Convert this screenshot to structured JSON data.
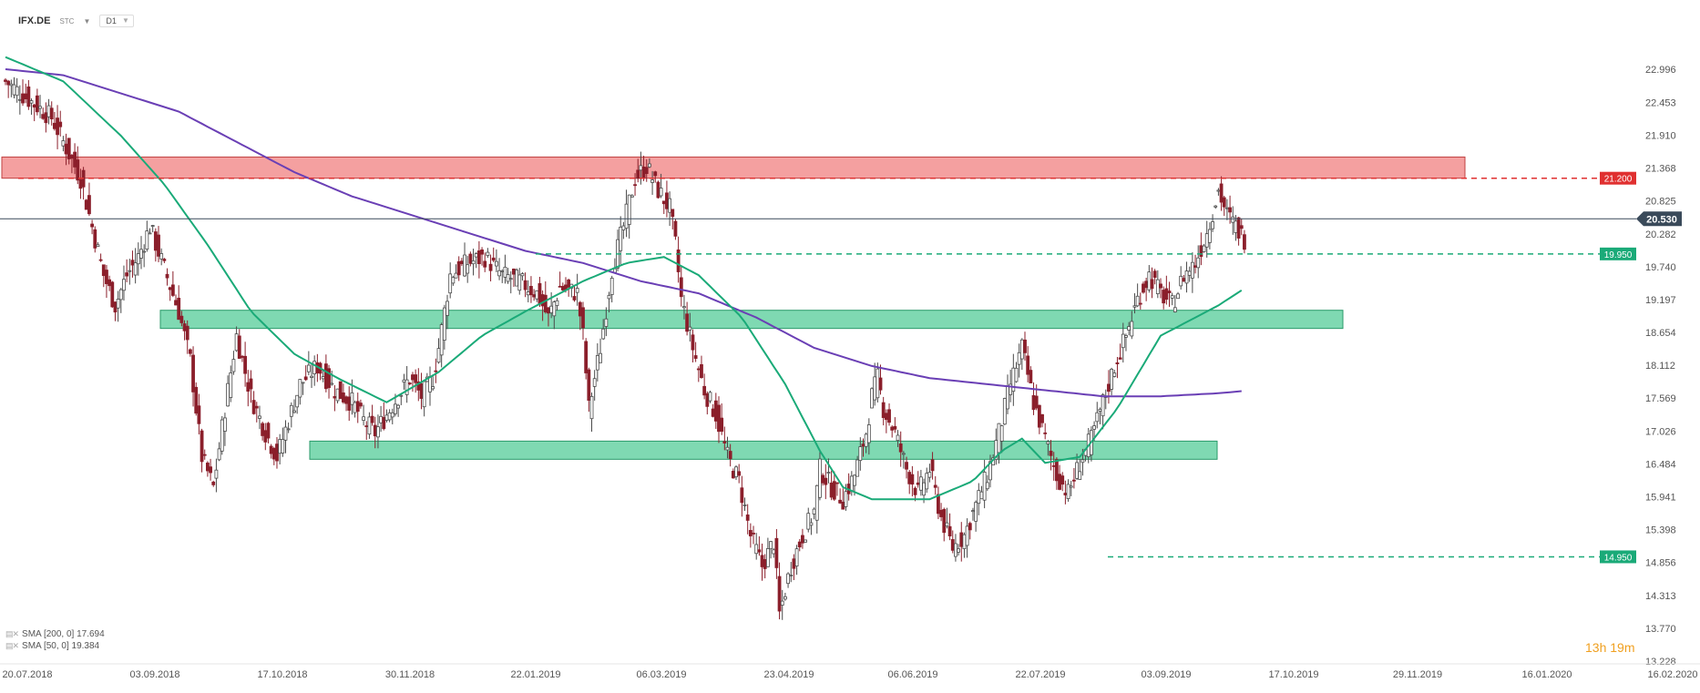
{
  "header": {
    "symbol": "IFX.DE",
    "stc": "STC",
    "timeframe": "D1"
  },
  "countdown": {
    "hours": "13",
    "h": "h",
    "minutes": "19",
    "m": "m"
  },
  "legend": [
    {
      "text": "SMA [200, 0] 17.694",
      "color": "#6a3fb5"
    },
    {
      "text": "SMA [50, 0] 19.384",
      "color": "#1aaa78"
    }
  ],
  "colors": {
    "bull": "#4a4a4a",
    "bear": "#8b1f2b",
    "resistance_zone": "#f08080",
    "support_zone": "#5fcf9f",
    "sma200": "#6a3fb5",
    "sma50": "#1aaa78",
    "red_label": "#e03030",
    "green_label": "#1aaa78",
    "price_label": "#3a4a5a"
  },
  "chart_data": {
    "type": "candlestick",
    "ylim": [
      13.228,
      23.3
    ],
    "y_ticks": [
      "22.996",
      "22.453",
      "21.910",
      "21.368",
      "20.825",
      "20.282",
      "19.740",
      "19.197",
      "18.654",
      "18.112",
      "17.569",
      "17.026",
      "16.484",
      "15.941",
      "15.398",
      "14.856",
      "14.313",
      "13.770",
      "13.228"
    ],
    "x_ticks": [
      "20.07.2018",
      "03.09.2018",
      "17.10.2018",
      "30.11.2018",
      "22.01.2019",
      "06.03.2019",
      "23.04.2019",
      "06.06.2019",
      "22.07.2019",
      "03.09.2019",
      "17.10.2019",
      "29.11.2019",
      "16.01.2020",
      "16.02.2020"
    ],
    "current_price": "20.530",
    "levels": [
      {
        "value": 21.2,
        "label": "21.200",
        "color": "red"
      },
      {
        "value": 19.95,
        "label": "19.950",
        "color": "green"
      },
      {
        "value": 14.95,
        "label": "14.950",
        "color": "green"
      }
    ],
    "zones": [
      {
        "name": "resistance",
        "from_date": "20.07.2018",
        "to_date": "20.12.2019",
        "low": 21.2,
        "high": 21.55
      },
      {
        "name": "support-upper",
        "from_date": "27.08.2018",
        "to_date": "10.11.2019",
        "low": 18.72,
        "high": 19.02
      },
      {
        "name": "support-lower",
        "from_date": "18.10.2018",
        "to_date": "22.09.2019",
        "low": 16.56,
        "high": 16.86
      }
    ],
    "close_path": [
      [
        0,
        22.8
      ],
      [
        8,
        22.5
      ],
      [
        16,
        22.2
      ],
      [
        22,
        21.6
      ],
      [
        26,
        21.2
      ],
      [
        30,
        20.4
      ],
      [
        34,
        19.6
      ],
      [
        38,
        19.1
      ],
      [
        42,
        19.6
      ],
      [
        46,
        19.9
      ],
      [
        50,
        20.4
      ],
      [
        55,
        19.7
      ],
      [
        60,
        19.0
      ],
      [
        64,
        18.2
      ],
      [
        68,
        16.6
      ],
      [
        72,
        16.1
      ],
      [
        76,
        17.4
      ],
      [
        80,
        18.6
      ],
      [
        85,
        17.6
      ],
      [
        90,
        17.0
      ],
      [
        94,
        16.6
      ],
      [
        98,
        17.2
      ],
      [
        102,
        17.8
      ],
      [
        108,
        18.1
      ],
      [
        114,
        17.7
      ],
      [
        120,
        17.5
      ],
      [
        124,
        17.2
      ],
      [
        128,
        17.0
      ],
      [
        132,
        17.3
      ],
      [
        136,
        17.6
      ],
      [
        140,
        17.9
      ],
      [
        144,
        17.6
      ],
      [
        148,
        17.9
      ],
      [
        150,
        18.4
      ],
      [
        154,
        19.6
      ],
      [
        160,
        19.8
      ],
      [
        166,
        19.9
      ],
      [
        172,
        19.6
      ],
      [
        178,
        19.5
      ],
      [
        184,
        19.3
      ],
      [
        188,
        18.9
      ],
      [
        192,
        19.4
      ],
      [
        198,
        19.3
      ],
      [
        200,
        18.6
      ],
      [
        202,
        17.4
      ],
      [
        206,
        18.4
      ],
      [
        210,
        19.7
      ],
      [
        214,
        20.4
      ],
      [
        218,
        21.2
      ],
      [
        222,
        21.4
      ],
      [
        226,
        21.0
      ],
      [
        230,
        20.7
      ],
      [
        232,
        20.1
      ],
      [
        234,
        19.2
      ],
      [
        238,
        18.4
      ],
      [
        242,
        17.7
      ],
      [
        246,
        17.3
      ],
      [
        250,
        16.6
      ],
      [
        254,
        16.2
      ],
      [
        258,
        15.3
      ],
      [
        262,
        14.8
      ],
      [
        266,
        15.2
      ],
      [
        268,
        14.0
      ],
      [
        272,
        14.8
      ],
      [
        276,
        15.3
      ],
      [
        280,
        15.7
      ],
      [
        282,
        16.4
      ],
      [
        286,
        16.1
      ],
      [
        290,
        15.9
      ],
      [
        294,
        16.3
      ],
      [
        298,
        17.0
      ],
      [
        300,
        17.6
      ],
      [
        302,
        17.9
      ],
      [
        304,
        17.4
      ],
      [
        308,
        17.0
      ],
      [
        312,
        16.4
      ],
      [
        316,
        16.0
      ],
      [
        320,
        16.4
      ],
      [
        324,
        15.6
      ],
      [
        328,
        15.1
      ],
      [
        332,
        15.3
      ],
      [
        336,
        15.8
      ],
      [
        340,
        16.3
      ],
      [
        344,
        17.0
      ],
      [
        348,
        17.8
      ],
      [
        352,
        18.4
      ],
      [
        356,
        17.5
      ],
      [
        360,
        16.9
      ],
      [
        364,
        16.3
      ],
      [
        368,
        16.0
      ],
      [
        372,
        16.5
      ],
      [
        376,
        16.9
      ],
      [
        380,
        17.5
      ],
      [
        384,
        18.1
      ],
      [
        388,
        18.6
      ],
      [
        392,
        19.2
      ],
      [
        396,
        19.6
      ],
      [
        400,
        19.3
      ],
      [
        404,
        19.1
      ],
      [
        408,
        19.6
      ],
      [
        412,
        19.8
      ],
      [
        416,
        20.3
      ],
      [
        420,
        21.0
      ],
      [
        423,
        20.6
      ],
      [
        426,
        20.4
      ],
      [
        429,
        20.2
      ]
    ],
    "series": [
      {
        "name": "SMA [200, 0]",
        "value": "17.694",
        "path": [
          [
            0,
            23.0
          ],
          [
            20,
            22.9
          ],
          [
            40,
            22.6
          ],
          [
            60,
            22.3
          ],
          [
            80,
            21.8
          ],
          [
            100,
            21.3
          ],
          [
            120,
            20.9
          ],
          [
            140,
            20.6
          ],
          [
            160,
            20.3
          ],
          [
            180,
            20.0
          ],
          [
            200,
            19.8
          ],
          [
            220,
            19.5
          ],
          [
            240,
            19.3
          ],
          [
            260,
            18.9
          ],
          [
            280,
            18.4
          ],
          [
            300,
            18.1
          ],
          [
            320,
            17.9
          ],
          [
            340,
            17.8
          ],
          [
            360,
            17.7
          ],
          [
            380,
            17.6
          ],
          [
            400,
            17.6
          ],
          [
            420,
            17.65
          ],
          [
            429,
            17.69
          ]
        ]
      },
      {
        "name": "SMA [50, 0]",
        "value": "19.384",
        "path": [
          [
            0,
            23.2
          ],
          [
            20,
            22.8
          ],
          [
            40,
            21.9
          ],
          [
            55,
            21.1
          ],
          [
            70,
            20.1
          ],
          [
            85,
            19.0
          ],
          [
            100,
            18.3
          ],
          [
            115,
            17.9
          ],
          [
            132,
            17.5
          ],
          [
            150,
            18.0
          ],
          [
            165,
            18.6
          ],
          [
            180,
            19.0
          ],
          [
            200,
            19.5
          ],
          [
            215,
            19.8
          ],
          [
            228,
            19.9
          ],
          [
            240,
            19.6
          ],
          [
            255,
            18.9
          ],
          [
            270,
            17.8
          ],
          [
            282,
            16.7
          ],
          [
            290,
            16.1
          ],
          [
            300,
            15.9
          ],
          [
            320,
            15.9
          ],
          [
            335,
            16.2
          ],
          [
            345,
            16.7
          ],
          [
            352,
            16.9
          ],
          [
            360,
            16.5
          ],
          [
            372,
            16.6
          ],
          [
            385,
            17.4
          ],
          [
            400,
            18.6
          ],
          [
            412,
            18.9
          ],
          [
            420,
            19.1
          ],
          [
            429,
            19.38
          ]
        ]
      }
    ]
  }
}
